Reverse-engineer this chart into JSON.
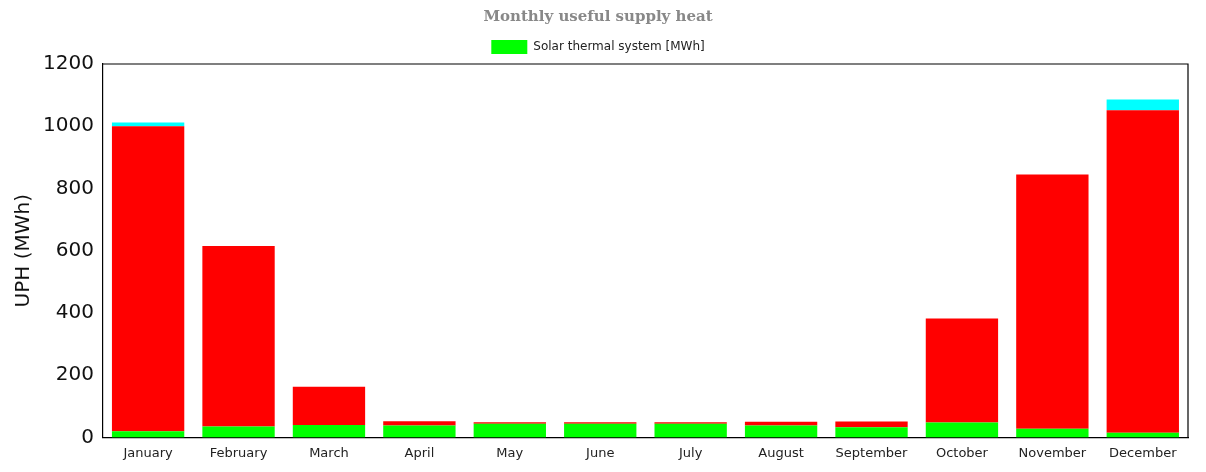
{
  "chart_data": {
    "type": "bar",
    "title": "Monthly useful supply heat",
    "ylabel": "UPH (MWh)",
    "categories": [
      "January",
      "February",
      "March",
      "April",
      "May",
      "June",
      "July",
      "August",
      "September",
      "October",
      "November",
      "December"
    ],
    "stacked": true,
    "series": [
      {
        "name": "Solar thermal system [MWh]",
        "color": "#00ff00",
        "values": [
          20,
          35,
          40,
          38,
          44,
          44,
          44,
          38,
          33,
          48,
          28,
          15
        ]
      },
      {
        "color": "#ff0000",
        "values": [
          980,
          580,
          123,
          14,
          5,
          5,
          5,
          12,
          18,
          334,
          817,
          1036
        ]
      },
      {
        "color": "#00ffff",
        "values": [
          12,
          null,
          null,
          null,
          null,
          null,
          null,
          null,
          null,
          null,
          null,
          35
        ]
      }
    ],
    "ylim": [
      0,
      1200
    ],
    "yticks": [
      0,
      200,
      400,
      600,
      800,
      1000,
      1200
    ],
    "grid": false,
    "legend": "top"
  }
}
